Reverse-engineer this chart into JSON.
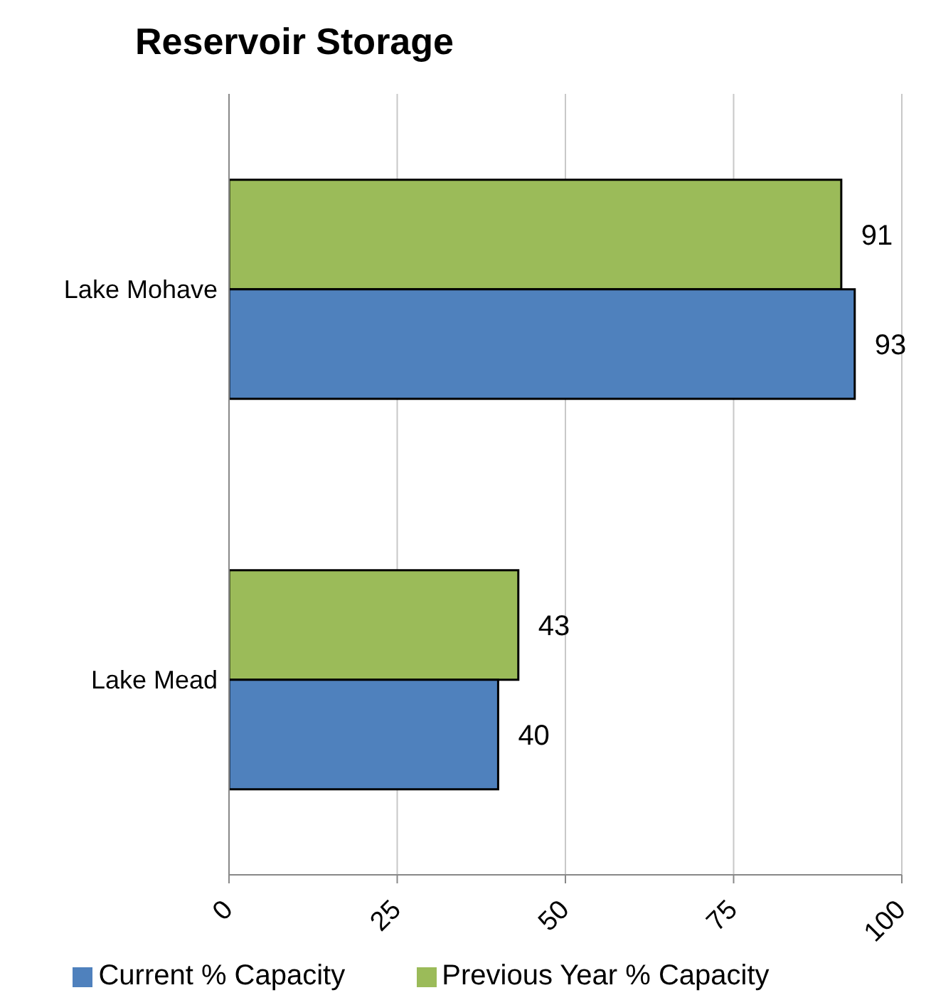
{
  "chart_data": {
    "type": "bar",
    "orientation": "horizontal",
    "title": "Reservoir Storage",
    "categories": [
      "Lake Mohave",
      "Lake Mead"
    ],
    "series": [
      {
        "name": "Previous Year % Capacity",
        "color": "#9bbb59",
        "values": [
          91,
          43
        ]
      },
      {
        "name": "Current % Capacity",
        "color": "#4f81bd",
        "values": [
          93,
          40
        ]
      }
    ],
    "xlim": [
      0,
      100
    ],
    "xticks": [
      0,
      25,
      50,
      75,
      100
    ],
    "grid": "x",
    "legend": "bottom",
    "data_labels": true
  }
}
